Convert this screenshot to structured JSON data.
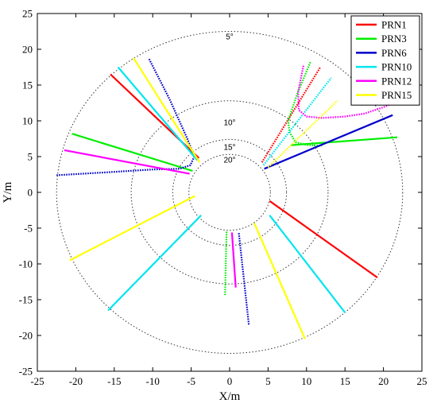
{
  "chart_data": {
    "type": "line",
    "xlabel": "X/m",
    "ylabel": "Y/m",
    "xlim": [
      -25,
      25
    ],
    "ylim": [
      -25,
      25
    ],
    "xticks": [
      "-25",
      "-20",
      "-15",
      "-10",
      "-5",
      "0",
      "5",
      "10",
      "15",
      "20",
      "25"
    ],
    "yticks": [
      "-25",
      "-20",
      "-15",
      "-10",
      "-5",
      "0",
      "5",
      "10",
      "15",
      "20",
      "25"
    ],
    "grid": false,
    "legend_position": "top-right",
    "rings": [
      {
        "label": "5°",
        "radius": 22.5,
        "label_pos": [
          0,
          21.7
        ]
      },
      {
        "label": "10°",
        "radius": 12.8,
        "label_pos": [
          0,
          9.7
        ]
      },
      {
        "label": "15°",
        "radius": 7.4,
        "label_pos": [
          0,
          6.3
        ]
      },
      {
        "label": "20°",
        "radius": 5.3,
        "label_pos": [
          0,
          4.5
        ]
      }
    ],
    "series": [
      {
        "name": "PRN1",
        "color": "#ff0000",
        "segments": [
          {
            "dotted": false,
            "points": [
              [
                -15.5,
                16.5
              ],
              [
                -4,
                4.8
              ]
            ]
          },
          {
            "dotted": false,
            "points": [
              [
                5.2,
                -1.2
              ],
              [
                19.2,
                -11.9
              ]
            ]
          },
          {
            "dotted": true,
            "points": [
              [
                4.2,
                4.2
              ],
              [
                11.8,
                17.5
              ]
            ]
          }
        ]
      },
      {
        "name": "PRN3",
        "color": "#00ee00",
        "segments": [
          {
            "dotted": false,
            "points": [
              [
                -20.5,
                8.2
              ],
              [
                -4.8,
                3
              ]
            ]
          },
          {
            "dotted": false,
            "points": [
              [
                8,
                6.6
              ],
              [
                21.8,
                7.7
              ]
            ]
          },
          {
            "dotted": true,
            "points": [
              [
                10.5,
                18.2
              ],
              [
                8.8,
                13.8
              ],
              [
                7.6,
                10
              ],
              [
                7.8,
                8.4
              ],
              [
                8.6,
                7
              ],
              [
                10.2,
                6.6
              ],
              [
                12,
                6.5
              ]
            ]
          },
          {
            "dotted": true,
            "points": [
              [
                -0.4,
                -5.5
              ],
              [
                -0.6,
                -14.5
              ]
            ]
          }
        ]
      },
      {
        "name": "PRN6",
        "color": "#0000cc",
        "segments": [
          {
            "dotted": false,
            "points": [
              [
                4.5,
                3.3
              ],
              [
                21.2,
                10.8
              ]
            ]
          },
          {
            "dotted": true,
            "points": [
              [
                -22.5,
                2.4
              ],
              [
                -16,
                2.8
              ],
              [
                -10,
                3.2
              ],
              [
                -6.5,
                3.3
              ],
              [
                -5.1,
                3.8
              ],
              [
                -4.6,
                5
              ],
              [
                -5.5,
                7.5
              ],
              [
                -7.8,
                13
              ],
              [
                -10.5,
                18.7
              ]
            ]
          },
          {
            "dotted": true,
            "points": [
              [
                1.2,
                -5.7
              ],
              [
                2.5,
                -18.5
              ]
            ]
          }
        ]
      },
      {
        "name": "PRN10",
        "color": "#00e5ee",
        "segments": [
          {
            "dotted": false,
            "points": [
              [
                -14.5,
                17.5
              ],
              [
                -4.2,
                4.5
              ]
            ]
          },
          {
            "dotted": false,
            "points": [
              [
                -3.7,
                -3.2
              ],
              [
                -15.8,
                -16.5
              ]
            ]
          },
          {
            "dotted": false,
            "points": [
              [
                5.2,
                -3.2
              ],
              [
                15,
                -16.8
              ]
            ]
          },
          {
            "dotted": true,
            "points": [
              [
                4.4,
                3.8
              ],
              [
                13.2,
                16
              ]
            ]
          }
        ]
      },
      {
        "name": "PRN12",
        "color": "#ff00ff",
        "segments": [
          {
            "dotted": false,
            "points": [
              [
                -21.5,
                5.9
              ],
              [
                -5.2,
                2.6
              ]
            ]
          },
          {
            "dotted": false,
            "points": [
              [
                0.3,
                -5.6
              ],
              [
                0.8,
                -13.3
              ]
            ]
          },
          {
            "dotted": true,
            "points": [
              [
                9.6,
                17.7
              ],
              [
                8.9,
                14
              ],
              [
                9,
                11.5
              ],
              [
                10,
                10.6
              ],
              [
                12,
                10.4
              ],
              [
                15,
                10.6
              ],
              [
                17.5,
                11
              ],
              [
                20,
                11.9
              ],
              [
                21.5,
                12.6
              ]
            ]
          }
        ]
      },
      {
        "name": "PRN15",
        "color": "#ffff00",
        "segments": [
          {
            "dotted": false,
            "points": [
              [
                -12.5,
                18.8
              ],
              [
                -3.9,
                4.2
              ]
            ]
          },
          {
            "dotted": false,
            "points": [
              [
                -4.5,
                -0.5
              ],
              [
                -20.8,
                -9.5
              ]
            ]
          },
          {
            "dotted": false,
            "points": [
              [
                3.2,
                -4.3
              ],
              [
                9.8,
                -20.5
              ]
            ]
          },
          {
            "dotted": true,
            "points": [
              [
                5,
                3.5
              ],
              [
                14,
                12.8
              ]
            ]
          }
        ]
      }
    ]
  }
}
